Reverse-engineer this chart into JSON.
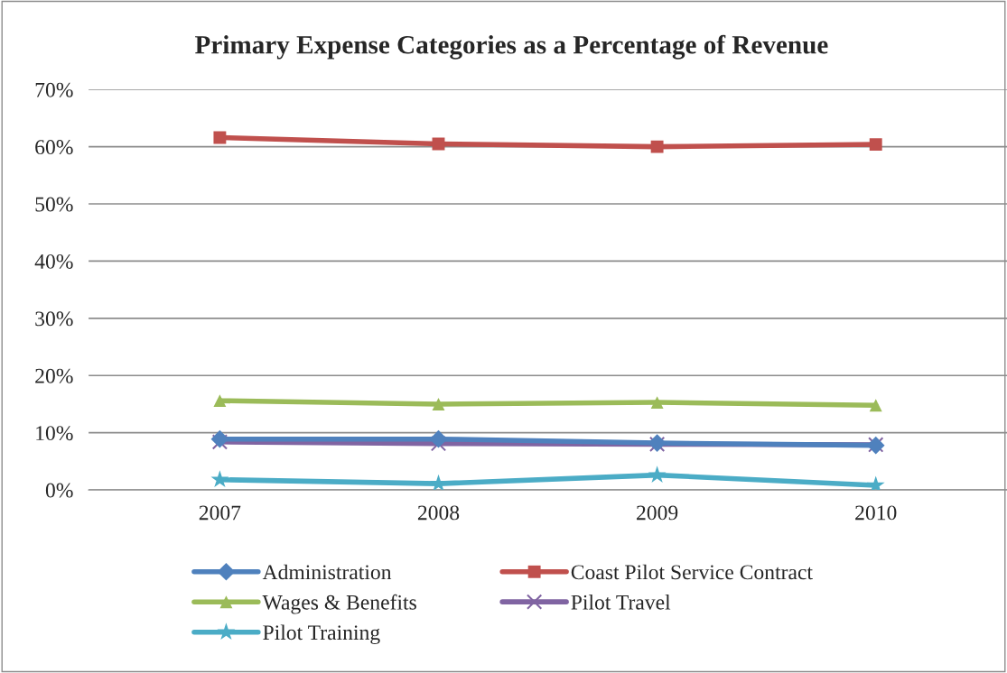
{
  "chart_data": {
    "type": "line",
    "title": "Primary Expense Categories as a Percentage of Revenue",
    "categories": [
      "2007",
      "2008",
      "2009",
      "2010"
    ],
    "series": [
      {
        "name": "Administration",
        "color": "#4f81bd",
        "marker": "diamond",
        "values": [
          8.9,
          8.9,
          8.2,
          7.8
        ]
      },
      {
        "name": "Coast Pilot Service Contract",
        "color": "#c0504d",
        "marker": "square",
        "values": [
          61.6,
          60.5,
          60.0,
          60.4
        ]
      },
      {
        "name": "Wages & Benefits",
        "color": "#9bbb59",
        "marker": "triangle",
        "values": [
          15.6,
          15.0,
          15.3,
          14.8
        ]
      },
      {
        "name": "Pilot Travel",
        "color": "#8064a2",
        "marker": "cross",
        "values": [
          8.4,
          8.1,
          8.0,
          7.9
        ]
      },
      {
        "name": "Pilot Training",
        "color": "#4bacc6",
        "marker": "star",
        "values": [
          1.8,
          1.1,
          2.6,
          0.8
        ]
      }
    ],
    "ylim": [
      0,
      70
    ],
    "yticks": [
      {
        "value": 0,
        "label": "0%"
      },
      {
        "value": 10,
        "label": "10%"
      },
      {
        "value": 20,
        "label": "20%"
      },
      {
        "value": 30,
        "label": "30%"
      },
      {
        "value": 40,
        "label": "40%"
      },
      {
        "value": 50,
        "label": "50%"
      },
      {
        "value": 60,
        "label": "60%"
      },
      {
        "value": 70,
        "label": "70%"
      }
    ],
    "grid": "y",
    "legend": "bottom"
  }
}
